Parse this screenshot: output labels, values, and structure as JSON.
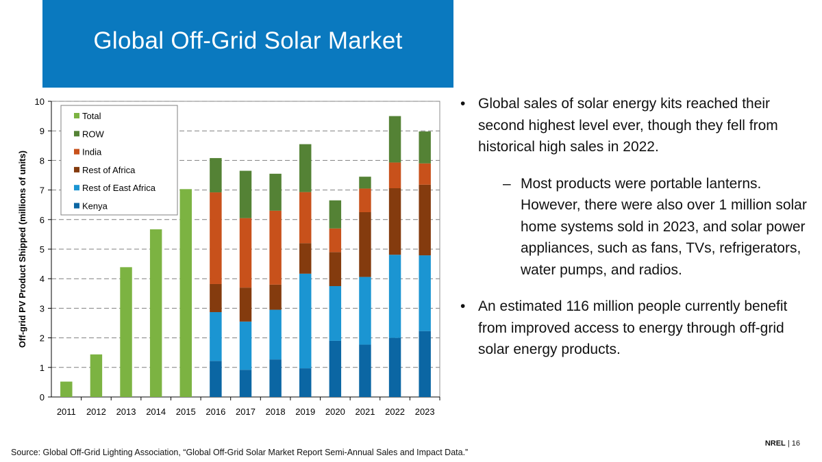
{
  "slide": {
    "title": "Global Off-Grid Solar Market",
    "bullets": [
      {
        "text": "Global sales of solar energy kits reached their second highest level ever, though they fell from historical high sales in 2022.",
        "sub": "Most products were portable lanterns. However, there were also over 1 million solar home systems sold in 2023, and solar power appliances, such as fans, TVs, refrigerators, water pumps, and radios."
      },
      {
        "text": "An estimated 116 million people currently benefit from improved access to energy through off-grid solar energy products.",
        "sub": ""
      }
    ],
    "bullet_mark": "•",
    "sub_mark": "–",
    "source": "Source: Global Off-Grid Lighting Association, “Global Off-Grid Solar Market Report Semi-Annual Sales and Impact Data.”",
    "brand": "NREL",
    "separator": "|",
    "page_number": "16"
  },
  "chart_data": {
    "type": "bar",
    "stacked": true,
    "title": "",
    "xlabel": "",
    "ylabel": "Off-grid PV Product Shipped (millions of units)",
    "ylim": [
      0,
      10
    ],
    "yticks": [
      0,
      1,
      2,
      3,
      4,
      5,
      6,
      7,
      8,
      9,
      10
    ],
    "grid": "horizontal dashed",
    "legend_position": "top-left",
    "categories": [
      "2011",
      "2012",
      "2013",
      "2014",
      "2015",
      "2016",
      "2017",
      "2018",
      "2019",
      "2020",
      "2021",
      "2022",
      "2023"
    ],
    "series": [
      {
        "name": "Kenya",
        "color": "#0b66a3",
        "values": [
          0,
          0,
          0,
          0,
          0,
          1.22,
          0.92,
          1.27,
          0.97,
          1.9,
          1.77,
          2.0,
          2.23
        ]
      },
      {
        "name": "Rest of East Africa",
        "color": "#1b95d2",
        "values": [
          0,
          0,
          0,
          0,
          0,
          1.65,
          1.63,
          1.68,
          3.2,
          1.85,
          2.29,
          2.81,
          2.56
        ]
      },
      {
        "name": "Rest of Africa",
        "color": "#843b0e",
        "values": [
          0,
          0,
          0,
          0,
          0,
          0.95,
          1.15,
          0.85,
          1.03,
          1.15,
          2.19,
          2.25,
          2.39
        ]
      },
      {
        "name": "India",
        "color": "#c8511b",
        "values": [
          0,
          0,
          0,
          0,
          0,
          3.1,
          2.35,
          2.5,
          1.73,
          0.8,
          0.8,
          0.87,
          0.72
        ]
      },
      {
        "name": "ROW",
        "color": "#548235",
        "values": [
          0,
          0,
          0,
          0,
          0,
          1.16,
          1.6,
          1.25,
          1.62,
          0.95,
          0.4,
          1.57,
          1.08
        ]
      },
      {
        "name": "Total",
        "color": "#7cb342",
        "values": [
          0.52,
          1.44,
          4.39,
          5.67,
          7.03,
          0,
          0,
          0,
          0,
          0,
          0,
          0,
          0
        ]
      }
    ],
    "legend_order": [
      "Total",
      "ROW",
      "India",
      "Rest of Africa",
      "Rest of East Africa",
      "Kenya"
    ]
  }
}
